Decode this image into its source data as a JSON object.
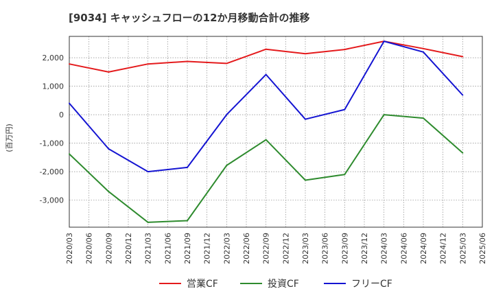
{
  "chart_data": {
    "type": "line",
    "title": "[9034]  キャッシュフローの12か月移動合計の推移",
    "ylabel": "(百万円)",
    "xlabel": "",
    "ylim": [
      -3950,
      2750
    ],
    "yticks": [
      2000,
      1000,
      0,
      -1000,
      -2000,
      -3000
    ],
    "ytick_labels": [
      "2,000",
      "1,000",
      "0",
      "-1,000",
      "-2,000",
      "-3,000"
    ],
    "categories": [
      "2020/03",
      "2020/06",
      "2020/09",
      "2020/12",
      "2021/03",
      "2021/06",
      "2021/09",
      "2021/12",
      "2022/03",
      "2022/06",
      "2022/09",
      "2022/12",
      "2023/03",
      "2023/06",
      "2023/09",
      "2023/12",
      "2024/03",
      "2024/06",
      "2024/09",
      "2024/12",
      "2025/03",
      "2025/06"
    ],
    "grid": true,
    "series": [
      {
        "name": "営業CF",
        "color": "#e41a1c",
        "values": [
          1780,
          null,
          1500,
          null,
          1780,
          null,
          1870,
          null,
          1800,
          null,
          2300,
          null,
          2140,
          null,
          2290,
          null,
          2580,
          null,
          2320,
          null,
          2040,
          null
        ]
      },
      {
        "name": "投資CF",
        "color": "#2e8b2e",
        "values": [
          -1380,
          null,
          -2700,
          null,
          -3780,
          null,
          -3720,
          null,
          -1780,
          null,
          -880,
          null,
          -2300,
          null,
          -2100,
          null,
          0,
          null,
          -120,
          null,
          -1340,
          null
        ]
      },
      {
        "name": "フリーCF",
        "color": "#1414d2",
        "values": [
          400,
          null,
          -1200,
          null,
          -2000,
          null,
          -1850,
          null,
          0,
          null,
          1410,
          null,
          -160,
          null,
          180,
          null,
          2580,
          null,
          2200,
          null,
          690,
          null
        ]
      }
    ]
  }
}
